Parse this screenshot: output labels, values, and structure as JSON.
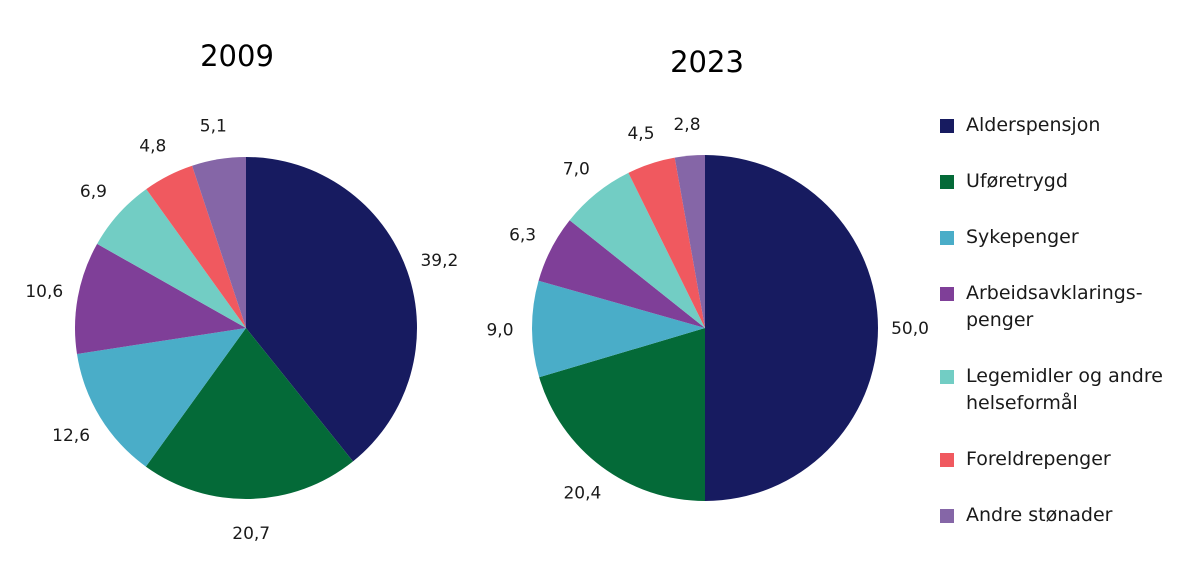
{
  "chart_data": {
    "type": "pie",
    "charts": [
      {
        "title": "2009",
        "slices": [
          {
            "name": "Alderspensjon",
            "value": 39.2,
            "label": "39,2"
          },
          {
            "name": "Uføretrygd",
            "value": 20.7,
            "label": "20,7"
          },
          {
            "name": "Sykepenger",
            "value": 12.6,
            "label": "12,6"
          },
          {
            "name": "Arbeidsavklaringspenger",
            "value": 10.6,
            "label": "10,6"
          },
          {
            "name": "Legemidler og andre helseformål",
            "value": 6.9,
            "label": "6,9"
          },
          {
            "name": "Foreldrepenger",
            "value": 4.8,
            "label": "4,8"
          },
          {
            "name": "Andre stønader",
            "value": 5.1,
            "label": "5,1"
          }
        ]
      },
      {
        "title": "2023",
        "slices": [
          {
            "name": "Alderspensjon",
            "value": 50.0,
            "label": "50,0"
          },
          {
            "name": "Uføretrygd",
            "value": 20.4,
            "label": "20,4"
          },
          {
            "name": "Sykepenger",
            "value": 9.0,
            "label": "9,0"
          },
          {
            "name": "Arbeidsavklaringspenger",
            "value": 6.3,
            "label": "6,3"
          },
          {
            "name": "Legemidler og andre helseformål",
            "value": 7.0,
            "label": "7,0"
          },
          {
            "name": "Foreldrepenger",
            "value": 4.5,
            "label": "4,5"
          },
          {
            "name": "Andre stønader",
            "value": 2.8,
            "label": "2,8"
          }
        ]
      }
    ],
    "legend": {
      "placement": "right",
      "entries": [
        {
          "label": "Alderspensjon",
          "color": "#171b60"
        },
        {
          "label": "Uføretrygd",
          "color": "#046a38"
        },
        {
          "label": "Sykepenger",
          "color": "#4aadc8"
        },
        {
          "label": "Arbeidsavklarings-\npenger",
          "color": "#7f3f98"
        },
        {
          "label": "Legemidler og andre\nhelseformål",
          "color": "#72cdc4"
        },
        {
          "label": "Foreldrepenger",
          "color": "#f0595f"
        },
        {
          "label": "Andre stønader",
          "color": "#8566a7"
        }
      ]
    }
  }
}
